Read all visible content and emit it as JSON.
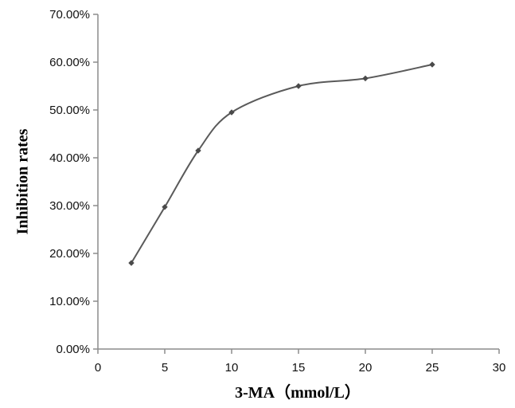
{
  "chart_data": {
    "type": "line",
    "title": "",
    "xlabel": "3-MA（mmol/L）",
    "ylabel": "Inhibition rates",
    "xlim": [
      0,
      30
    ],
    "ylim": [
      0,
      0.7
    ],
    "x_ticks": [
      0,
      5,
      10,
      15,
      20,
      25,
      30
    ],
    "x_tick_labels": [
      "0",
      "5",
      "10",
      "15",
      "20",
      "25",
      "30"
    ],
    "y_ticks": [
      0,
      0.1,
      0.2,
      0.3,
      0.4,
      0.5,
      0.6,
      0.7
    ],
    "y_tick_labels": [
      "0.00%",
      "10.00%",
      "20.00%",
      "30.00%",
      "40.00%",
      "50.00%",
      "60.00%",
      "70.00%"
    ],
    "grid": false,
    "legend": "none",
    "series": [
      {
        "x": [
          2.5,
          5,
          7.5,
          10,
          15,
          20,
          25
        ],
        "values": [
          0.18,
          0.297,
          0.415,
          0.495,
          0.55,
          0.566,
          0.595
        ]
      }
    ],
    "colors": {
      "line": "#5a5a5a",
      "marker": "#4a4a4a",
      "axis": "#8c8c8c"
    }
  }
}
